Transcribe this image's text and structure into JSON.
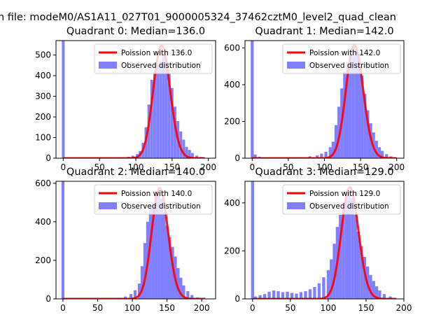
{
  "figure": {
    "suptitle": "n file: modeM0/AS1A11_027T01_9000005324_37462cztM0_level2_quad_clean"
  },
  "chart_data": [
    {
      "type": "bar",
      "title": "Quadrant 0: Median=136.0",
      "xlabel": "",
      "ylabel": "",
      "xlim": [
        -10,
        210
      ],
      "ylim": [
        0,
        570
      ],
      "xticks": [
        0,
        50,
        100,
        150,
        200
      ],
      "yticks": [
        0,
        100,
        200,
        300,
        400,
        500
      ],
      "grid": false,
      "legend": {
        "placement": "upper right",
        "entries": [
          "Poission with 136.0",
          "Observed distribution"
        ]
      },
      "series": [
        {
          "name": "Observed distribution",
          "kind": "histogram",
          "color": "#7f7fff",
          "bin_width": 3.83,
          "bins": [
            {
              "x": 0,
              "y": 570
            },
            {
              "x": 80,
              "y": 4
            },
            {
              "x": 90,
              "y": 7
            },
            {
              "x": 96,
              "y": 12
            },
            {
              "x": 102,
              "y": 20
            },
            {
              "x": 106,
              "y": 35
            },
            {
              "x": 110,
              "y": 75
            },
            {
              "x": 114,
              "y": 150
            },
            {
              "x": 118,
              "y": 260
            },
            {
              "x": 122,
              "y": 380
            },
            {
              "x": 126,
              "y": 420
            },
            {
              "x": 130,
              "y": 455
            },
            {
              "x": 134,
              "y": 470
            },
            {
              "x": 138,
              "y": 500
            },
            {
              "x": 142,
              "y": 470
            },
            {
              "x": 146,
              "y": 410
            },
            {
              "x": 150,
              "y": 340
            },
            {
              "x": 154,
              "y": 250
            },
            {
              "x": 158,
              "y": 180
            },
            {
              "x": 162,
              "y": 130
            },
            {
              "x": 166,
              "y": 90
            },
            {
              "x": 170,
              "y": 55
            },
            {
              "x": 174,
              "y": 40
            },
            {
              "x": 178,
              "y": 25
            },
            {
              "x": 184,
              "y": 12
            },
            {
              "x": 190,
              "y": 6
            }
          ]
        },
        {
          "name": "Poission with 136.0",
          "kind": "poisson",
          "color": "#ff0000",
          "lambda": 136.0,
          "peak": 545,
          "x_range": [
            0,
            195
          ]
        }
      ]
    },
    {
      "type": "bar",
      "title": "Quadrant 1: Median=142.0",
      "xlabel": "",
      "ylabel": "",
      "xlim": [
        -10,
        210
      ],
      "ylim": [
        0,
        640
      ],
      "xticks": [
        0,
        50,
        100,
        150,
        200
      ],
      "yticks": [
        0,
        200,
        400,
        600
      ],
      "grid": false,
      "legend": {
        "placement": "upper right",
        "entries": [
          "Poission with 142.0",
          "Observed distribution"
        ]
      },
      "series": [
        {
          "name": "Observed distribution",
          "kind": "histogram",
          "color": "#7f7fff",
          "bin_width": 4.1,
          "bins": [
            {
              "x": 0,
              "y": 640
            },
            {
              "x": 4,
              "y": 20
            },
            {
              "x": 10,
              "y": 8
            },
            {
              "x": 60,
              "y": 5
            },
            {
              "x": 80,
              "y": 10
            },
            {
              "x": 90,
              "y": 15
            },
            {
              "x": 96,
              "y": 25
            },
            {
              "x": 102,
              "y": 35
            },
            {
              "x": 108,
              "y": 60
            },
            {
              "x": 112,
              "y": 90
            },
            {
              "x": 116,
              "y": 180
            },
            {
              "x": 120,
              "y": 280
            },
            {
              "x": 124,
              "y": 380
            },
            {
              "x": 128,
              "y": 470
            },
            {
              "x": 132,
              "y": 520
            },
            {
              "x": 136,
              "y": 560
            },
            {
              "x": 140,
              "y": 610
            },
            {
              "x": 144,
              "y": 590
            },
            {
              "x": 148,
              "y": 540
            },
            {
              "x": 152,
              "y": 450
            },
            {
              "x": 156,
              "y": 350
            },
            {
              "x": 160,
              "y": 260
            },
            {
              "x": 164,
              "y": 190
            },
            {
              "x": 168,
              "y": 140
            },
            {
              "x": 172,
              "y": 95
            },
            {
              "x": 176,
              "y": 60
            },
            {
              "x": 180,
              "y": 40
            },
            {
              "x": 186,
              "y": 22
            },
            {
              "x": 192,
              "y": 10
            }
          ]
        },
        {
          "name": "Poission with 142.0",
          "kind": "poisson",
          "color": "#ff0000",
          "lambda": 142.0,
          "peak": 615,
          "x_range": [
            0,
            200
          ]
        }
      ]
    },
    {
      "type": "bar",
      "title": "Quadrant 2: Median=140.0",
      "xlabel": "",
      "ylabel": "",
      "xlim": [
        -10,
        220
      ],
      "ylim": [
        0,
        610
      ],
      "xticks": [
        0,
        50,
        100,
        150,
        200
      ],
      "yticks": [
        0,
        200,
        400,
        600
      ],
      "grid": false,
      "legend": {
        "placement": "upper right",
        "entries": [
          "Poission with 140.0",
          "Observed distribution"
        ]
      },
      "series": [
        {
          "name": "Observed distribution",
          "kind": "histogram",
          "color": "#7f7fff",
          "bin_width": 4.2,
          "bins": [
            {
              "x": 0,
              "y": 610
            },
            {
              "x": 80,
              "y": 6
            },
            {
              "x": 90,
              "y": 12
            },
            {
              "x": 98,
              "y": 25
            },
            {
              "x": 104,
              "y": 45
            },
            {
              "x": 110,
              "y": 80
            },
            {
              "x": 114,
              "y": 170
            },
            {
              "x": 118,
              "y": 290
            },
            {
              "x": 122,
              "y": 400
            },
            {
              "x": 126,
              "y": 470
            },
            {
              "x": 130,
              "y": 500
            },
            {
              "x": 134,
              "y": 540
            },
            {
              "x": 138,
              "y": 560
            },
            {
              "x": 142,
              "y": 520
            },
            {
              "x": 146,
              "y": 450
            },
            {
              "x": 150,
              "y": 380
            },
            {
              "x": 154,
              "y": 320
            },
            {
              "x": 158,
              "y": 270
            },
            {
              "x": 162,
              "y": 220
            },
            {
              "x": 166,
              "y": 160
            },
            {
              "x": 170,
              "y": 110
            },
            {
              "x": 174,
              "y": 70
            },
            {
              "x": 180,
              "y": 40
            },
            {
              "x": 186,
              "y": 20
            },
            {
              "x": 194,
              "y": 8
            }
          ]
        },
        {
          "name": "Poission with 140.0",
          "kind": "poisson",
          "color": "#ff0000",
          "lambda": 140.0,
          "peak": 575,
          "x_range": [
            0,
            205
          ]
        }
      ]
    },
    {
      "type": "bar",
      "title": "Quadrant 3: Median=129.0",
      "xlabel": "",
      "ylabel": "",
      "xlim": [
        -10,
        200
      ],
      "ylim": [
        0,
        490
      ],
      "xticks": [
        0,
        50,
        100,
        150,
        200
      ],
      "yticks": [
        0,
        200,
        400
      ],
      "grid": false,
      "legend": {
        "placement": "upper right",
        "entries": [
          "Poission with 129.0",
          "Observed distribution"
        ]
      },
      "series": [
        {
          "name": "Observed distribution",
          "kind": "histogram",
          "color": "#7f7fff",
          "bin_width": 4.0,
          "bins": [
            {
              "x": 0,
              "y": 490
            },
            {
              "x": 4,
              "y": 10
            },
            {
              "x": 10,
              "y": 15
            },
            {
              "x": 16,
              "y": 20
            },
            {
              "x": 22,
              "y": 30
            },
            {
              "x": 28,
              "y": 35
            },
            {
              "x": 34,
              "y": 32
            },
            {
              "x": 40,
              "y": 28
            },
            {
              "x": 46,
              "y": 30
            },
            {
              "x": 52,
              "y": 25
            },
            {
              "x": 58,
              "y": 22
            },
            {
              "x": 64,
              "y": 28
            },
            {
              "x": 70,
              "y": 32
            },
            {
              "x": 76,
              "y": 40
            },
            {
              "x": 82,
              "y": 50
            },
            {
              "x": 88,
              "y": 65
            },
            {
              "x": 94,
              "y": 90
            },
            {
              "x": 100,
              "y": 120
            },
            {
              "x": 104,
              "y": 165
            },
            {
              "x": 108,
              "y": 230
            },
            {
              "x": 112,
              "y": 300
            },
            {
              "x": 116,
              "y": 350
            },
            {
              "x": 120,
              "y": 400
            },
            {
              "x": 124,
              "y": 430
            },
            {
              "x": 128,
              "y": 450
            },
            {
              "x": 132,
              "y": 420
            },
            {
              "x": 136,
              "y": 350
            },
            {
              "x": 140,
              "y": 280
            },
            {
              "x": 144,
              "y": 220
            },
            {
              "x": 148,
              "y": 175
            },
            {
              "x": 152,
              "y": 135
            },
            {
              "x": 156,
              "y": 100
            },
            {
              "x": 160,
              "y": 75
            },
            {
              "x": 164,
              "y": 52
            },
            {
              "x": 168,
              "y": 35
            },
            {
              "x": 174,
              "y": 20
            },
            {
              "x": 182,
              "y": 10
            }
          ]
        },
        {
          "name": "Poission with 129.0",
          "kind": "poisson",
          "color": "#ff0000",
          "lambda": 129.0,
          "peak": 465,
          "x_range": [
            0,
            190
          ]
        }
      ]
    }
  ]
}
